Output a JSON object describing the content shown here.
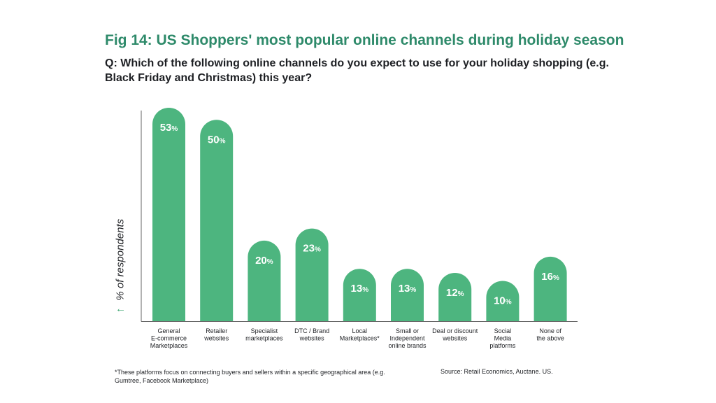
{
  "title": "Fig 14: US Shoppers' most popular online channels during holiday season",
  "question": "Q: Which of the following online channels do you expect to use for your holiday shopping (e.g. Black Friday and Christmas) this year?",
  "footnote": "*These platforms focus on connecting buyers and sellers within a specific geographical area (e.g. Gumtree, Facebook Marketplace)",
  "source": "Source: Retail Economics, Auctane. US.",
  "colors": {
    "bar": "#4db57f",
    "title": "#2e8a6a",
    "axis": "#666666",
    "arrow": "#3aa56f"
  },
  "chart_data": {
    "type": "bar",
    "ylabel": "% of respondents",
    "ylabel_icon": "up-arrow-icon",
    "value_suffix": "%",
    "ylim": [
      0,
      53
    ],
    "grid": false,
    "categories": [
      [
        "General",
        "E-commerce",
        "Marketplaces"
      ],
      [
        "Retailer",
        "websites"
      ],
      [
        "Specialist",
        "marketplaces"
      ],
      [
        "DTC / Brand",
        "websites"
      ],
      [
        "Local",
        "Marketplaces*"
      ],
      [
        "Small or",
        "Independent",
        "online brands"
      ],
      [
        "Deal or discount",
        "websites"
      ],
      [
        "Social",
        "Media",
        "platforms"
      ],
      [
        "None of",
        "the above"
      ]
    ],
    "values": [
      53,
      50,
      20,
      23,
      13,
      13,
      12,
      10,
      16
    ]
  }
}
